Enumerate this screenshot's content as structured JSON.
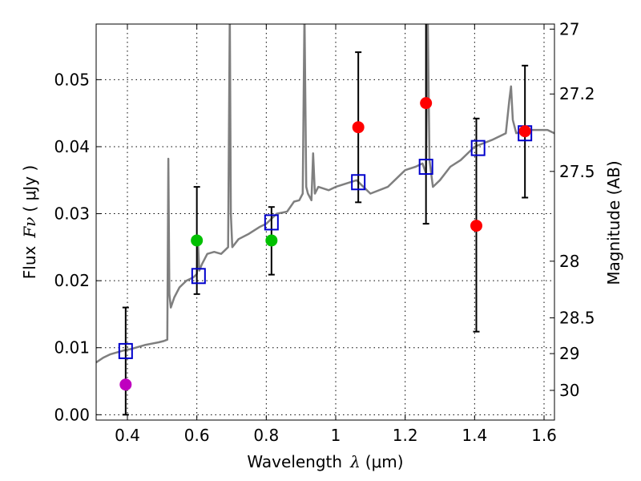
{
  "chart_data": {
    "type": "scatter",
    "title": "",
    "xlabel_text": "Wavelength",
    "xlabel_symbol": "λ",
    "xlabel_unit": "(μm)",
    "ylabel_text": "Flux",
    "ylabel_symbol": "Fν",
    "ylabel_unit": "( μJy )",
    "y2label": "Magnitude (AB)",
    "xlim": [
      0.31,
      1.63
    ],
    "ylim": [
      -0.0008,
      0.0583
    ],
    "grid": true,
    "x_ticks": [
      0.4,
      0.6,
      0.8,
      1.0,
      1.2,
      1.4,
      1.6
    ],
    "x_tick_labels": [
      "0.4",
      "0.6",
      "0.8",
      "1",
      "1.2",
      "1.4",
      "1.6"
    ],
    "y_ticks": [
      0.0,
      0.01,
      0.02,
      0.03,
      0.04,
      0.05
    ],
    "y_tick_labels": [
      "0.00",
      "0.01",
      "0.02",
      "0.03",
      "0.04",
      "0.05"
    ],
    "y2_ticks": [
      27,
      27.2,
      27.5,
      28,
      28.5,
      29,
      30
    ],
    "y2_tick_labels": [
      "27",
      "27.2",
      "27.5",
      "28",
      "28.5",
      "29",
      "30"
    ],
    "colors": {
      "spectrum": "#7f7f7f",
      "model": "#0000cc",
      "u_band": "#bf00bf",
      "optical": "#00c000",
      "nir": "#ff0000",
      "errorbar": "#000000"
    },
    "observed_photometry": [
      {
        "x": 0.395,
        "y": 0.0045,
        "yerr_low": 0.0045,
        "yerr_high": 0.0115,
        "group": "u_band"
      },
      {
        "x": 0.6,
        "y": 0.026,
        "yerr_low": 0.008,
        "yerr_high": 0.008,
        "group": "optical"
      },
      {
        "x": 0.815,
        "y": 0.026,
        "yerr_low": 0.0051,
        "yerr_high": 0.005,
        "group": "optical"
      },
      {
        "x": 1.065,
        "y": 0.0429,
        "yerr_low": 0.0112,
        "yerr_high": 0.0112,
        "group": "nir"
      },
      {
        "x": 1.26,
        "y": 0.0465,
        "yerr_low": 0.018,
        "yerr_high": 0.018,
        "group": "nir"
      },
      {
        "x": 1.405,
        "y": 0.0282,
        "yerr_low": 0.0158,
        "yerr_high": 0.016,
        "group": "nir"
      },
      {
        "x": 1.545,
        "y": 0.0423,
        "yerr_low": 0.0099,
        "yerr_high": 0.0098,
        "group": "nir"
      }
    ],
    "model_photometry": [
      {
        "x": 0.395,
        "y": 0.0095
      },
      {
        "x": 0.605,
        "y": 0.0207
      },
      {
        "x": 0.815,
        "y": 0.0287
      },
      {
        "x": 1.065,
        "y": 0.0347
      },
      {
        "x": 1.26,
        "y": 0.037
      },
      {
        "x": 1.41,
        "y": 0.0398
      },
      {
        "x": 1.545,
        "y": 0.042
      }
    ],
    "model_spectrum": {
      "x": [
        0.31,
        0.33,
        0.35,
        0.37,
        0.39,
        0.41,
        0.43,
        0.45,
        0.47,
        0.49,
        0.505,
        0.515,
        0.518,
        0.521,
        0.525,
        0.535,
        0.55,
        0.57,
        0.59,
        0.6,
        0.603,
        0.607,
        0.615,
        0.63,
        0.65,
        0.67,
        0.69,
        0.695,
        0.698,
        0.702,
        0.72,
        0.75,
        0.78,
        0.8,
        0.83,
        0.86,
        0.88,
        0.895,
        0.905,
        0.91,
        0.915,
        0.92,
        0.93,
        0.935,
        0.94,
        0.95,
        0.98,
        1.0,
        1.03,
        1.06,
        1.1,
        1.15,
        1.2,
        1.23,
        1.25,
        1.26,
        1.265,
        1.27,
        1.28,
        1.3,
        1.33,
        1.36,
        1.4,
        1.45,
        1.49,
        1.5,
        1.505,
        1.51,
        1.52,
        1.55,
        1.58,
        1.61,
        1.63
      ],
      "y": [
        0.0078,
        0.0085,
        0.009,
        0.0093,
        0.0096,
        0.0098,
        0.0101,
        0.0104,
        0.0106,
        0.0108,
        0.011,
        0.0112,
        0.0382,
        0.018,
        0.016,
        0.0175,
        0.019,
        0.02,
        0.0205,
        0.021,
        0.026,
        0.0215,
        0.0225,
        0.024,
        0.0243,
        0.024,
        0.025,
        0.06,
        0.03,
        0.025,
        0.0262,
        0.027,
        0.028,
        0.0285,
        0.03,
        0.0303,
        0.0318,
        0.032,
        0.033,
        0.06,
        0.034,
        0.033,
        0.032,
        0.039,
        0.033,
        0.034,
        0.0335,
        0.034,
        0.0345,
        0.035,
        0.033,
        0.034,
        0.0365,
        0.037,
        0.0375,
        0.036,
        0.06,
        0.038,
        0.034,
        0.035,
        0.037,
        0.038,
        0.04,
        0.041,
        0.042,
        0.047,
        0.049,
        0.044,
        0.042,
        0.0425,
        0.0425,
        0.0425,
        0.042
      ]
    }
  }
}
